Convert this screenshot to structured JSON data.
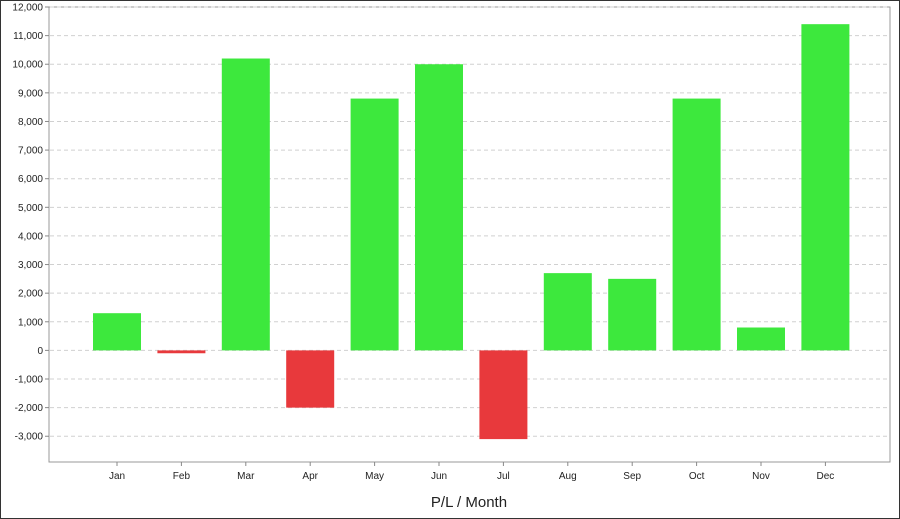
{
  "chart_data": {
    "type": "bar",
    "title": "",
    "xlabel": "P/L / Month",
    "ylabel": "",
    "categories": [
      "Jan",
      "Feb",
      "Mar",
      "Apr",
      "May",
      "Jun",
      "Jul",
      "Aug",
      "Sep",
      "Oct",
      "Nov",
      "Dec"
    ],
    "values": [
      1300,
      -100,
      10200,
      -2000,
      8800,
      10000,
      -3100,
      2700,
      2500,
      8800,
      800,
      11400
    ],
    "ylim": [
      -3900,
      12000
    ],
    "yticks": [
      -3000,
      -2000,
      -1000,
      0,
      1000,
      2000,
      3000,
      4000,
      5000,
      6000,
      7000,
      8000,
      9000,
      10000,
      11000,
      12000
    ],
    "ytick_labels": [
      "-3,000",
      "-2,000",
      "-1,000",
      "0",
      "1,000",
      "2,000",
      "3,000",
      "4,000",
      "5,000",
      "6,000",
      "7,000",
      "8,000",
      "9,000",
      "10,000",
      "11,000",
      "12,000"
    ],
    "grid": true,
    "colors": {
      "positive": "#3de83d",
      "negative": "#e8393c",
      "grid": "#d0d0d0",
      "axis": "#888888"
    }
  }
}
